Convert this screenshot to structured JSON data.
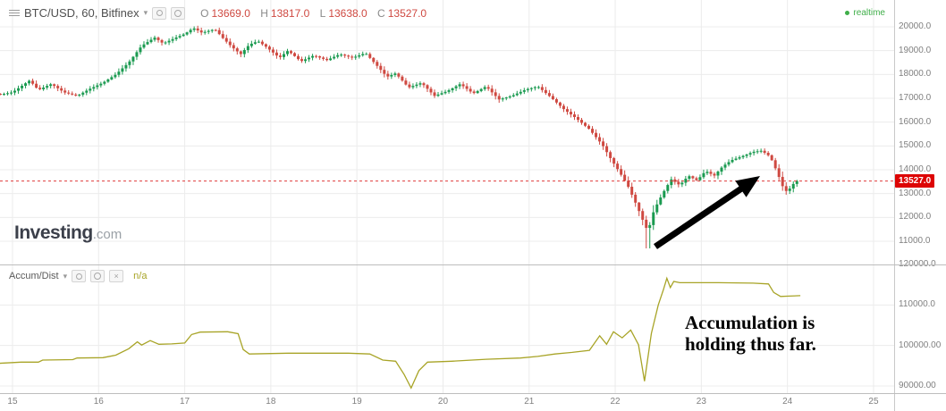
{
  "header": {
    "symbol_title": "BTC/USD, 60, Bitfinex",
    "ohlc_labels": {
      "o": "O",
      "h": "H",
      "l": "L",
      "c": "C"
    },
    "ohlc_values": {
      "o": "13669.0",
      "h": "13817.0",
      "l": "13638.0",
      "c": "13527.0"
    },
    "realtime_label": "realtime"
  },
  "logo": {
    "brand": "Investing",
    "suffix": ".com"
  },
  "indicator_header": {
    "label": "Accum/Dist",
    "value": "n/a"
  },
  "annotation_text": {
    "line1": "Accumulation is",
    "line2": "holding thus far."
  },
  "price_tag_label": "13527.0",
  "icons": {
    "caret": "▾",
    "close": "×"
  },
  "colors": {
    "candle_up": "#1a9a50",
    "candle_down": "#cf4941",
    "last_price_line": "#e03c3c",
    "price_tag_bg": "#dd0404",
    "price_tag_text": "#ffffff",
    "realtime": "#3fae49",
    "indicator_line": "#a8a427",
    "indicator_value": "#a8a427",
    "ohlc_value": "#cf4941",
    "axis_text": "#7f7f7f",
    "grid": "#ececec",
    "arrow": "#000000",
    "annotation_text": "#000000"
  },
  "arrow_annotation": {
    "from": [
      733,
      276
    ],
    "to": [
      850,
      197
    ]
  },
  "chart_data": [
    {
      "type": "candlestick",
      "title": "BTC/USD, 60, Bitfinex",
      "last_price": 13527.0,
      "ohlc": {
        "open": 13669.0,
        "high": 13817.0,
        "low": 13638.0,
        "close": 13527.0
      },
      "candles_per_day": 24,
      "range": [
        14.86,
        24.11
      ],
      "spike_low": {
        "t": 22.38,
        "price": 10700
      },
      "x_axis": {
        "ticks": [
          15,
          16,
          17,
          18,
          19,
          20,
          21,
          22,
          23,
          24,
          25
        ],
        "labels": [
          "15",
          "16",
          "17",
          "18",
          "19",
          "20",
          "21",
          "22",
          "23",
          "24",
          "25"
        ]
      },
      "y_axis": {
        "ticks": [
          {
            "value": 20000,
            "label": "20000.0"
          },
          {
            "value": 19000,
            "label": "19000.0"
          },
          {
            "value": 18000,
            "label": "18000.0"
          },
          {
            "value": 17000,
            "label": "17000.0"
          },
          {
            "value": 16000,
            "label": "16000.0"
          },
          {
            "value": 15000,
            "label": "15000.0"
          },
          {
            "value": 14000,
            "label": "14000.0"
          },
          {
            "value": 13000,
            "label": "13000.0"
          },
          {
            "value": 12000,
            "label": "12000.0"
          },
          {
            "value": 11000,
            "label": "11000.0"
          }
        ]
      },
      "price_path_anchors": [
        [
          14.85,
          17150
        ],
        [
          15.0,
          17250
        ],
        [
          15.1,
          17500
        ],
        [
          15.2,
          17750
        ],
        [
          15.3,
          17350
        ],
        [
          15.45,
          17600
        ],
        [
          15.6,
          17250
        ],
        [
          15.75,
          17100
        ],
        [
          15.9,
          17400
        ],
        [
          16.05,
          17650
        ],
        [
          16.2,
          18000
        ],
        [
          16.35,
          18500
        ],
        [
          16.5,
          19200
        ],
        [
          16.65,
          19550
        ],
        [
          16.75,
          19300
        ],
        [
          16.9,
          19550
        ],
        [
          17.0,
          19700
        ],
        [
          17.1,
          19950
        ],
        [
          17.2,
          19750
        ],
        [
          17.35,
          19900
        ],
        [
          17.45,
          19500
        ],
        [
          17.55,
          19150
        ],
        [
          17.65,
          18850
        ],
        [
          17.75,
          19250
        ],
        [
          17.85,
          19400
        ],
        [
          17.95,
          19150
        ],
        [
          18.1,
          18700
        ],
        [
          18.2,
          19000
        ],
        [
          18.35,
          18550
        ],
        [
          18.5,
          18800
        ],
        [
          18.65,
          18600
        ],
        [
          18.8,
          18850
        ],
        [
          18.95,
          18700
        ],
        [
          19.1,
          18900
        ],
        [
          19.2,
          18500
        ],
        [
          19.35,
          17900
        ],
        [
          19.45,
          18050
        ],
        [
          19.6,
          17450
        ],
        [
          19.75,
          17650
        ],
        [
          19.9,
          17100
        ],
        [
          20.05,
          17300
        ],
        [
          20.2,
          17600
        ],
        [
          20.35,
          17200
        ],
        [
          20.5,
          17500
        ],
        [
          20.65,
          16950
        ],
        [
          20.8,
          17100
        ],
        [
          20.95,
          17350
        ],
        [
          21.1,
          17500
        ],
        [
          21.25,
          17050
        ],
        [
          21.4,
          16550
        ],
        [
          21.55,
          16150
        ],
        [
          21.7,
          15700
        ],
        [
          21.85,
          15050
        ],
        [
          21.95,
          14450
        ],
        [
          22.05,
          13900
        ],
        [
          22.15,
          13300
        ],
        [
          22.25,
          12500
        ],
        [
          22.33,
          11800
        ],
        [
          22.38,
          11400
        ],
        [
          22.45,
          12300
        ],
        [
          22.55,
          13000
        ],
        [
          22.65,
          13600
        ],
        [
          22.75,
          13350
        ],
        [
          22.85,
          13750
        ],
        [
          22.95,
          13550
        ],
        [
          23.05,
          13950
        ],
        [
          23.15,
          13750
        ],
        [
          23.25,
          14150
        ],
        [
          23.35,
          14400
        ],
        [
          23.5,
          14600
        ],
        [
          23.6,
          14750
        ],
        [
          23.7,
          14800
        ],
        [
          23.8,
          14550
        ],
        [
          23.88,
          13900
        ],
        [
          23.95,
          13250
        ],
        [
          24.0,
          13050
        ],
        [
          24.05,
          13350
        ],
        [
          24.11,
          13527
        ]
      ]
    },
    {
      "type": "line",
      "name": "Accum/Dist",
      "value_display": "n/a",
      "y_axis": {
        "ticks": [
          {
            "value": 120000,
            "label": "120000.0"
          },
          {
            "value": 110000,
            "label": "110000.0"
          },
          {
            "value": 100000,
            "label": "100000.00"
          },
          {
            "value": 90000,
            "label": "90000.00"
          }
        ]
      },
      "points": [
        [
          14.85,
          95600
        ],
        [
          15.1,
          95900
        ],
        [
          15.3,
          95900
        ],
        [
          15.35,
          96400
        ],
        [
          15.7,
          96500
        ],
        [
          15.75,
          96900
        ],
        [
          16.05,
          97000
        ],
        [
          16.2,
          97600
        ],
        [
          16.35,
          99200
        ],
        [
          16.45,
          100900
        ],
        [
          16.5,
          100100
        ],
        [
          16.6,
          101200
        ],
        [
          16.7,
          100300
        ],
        [
          16.85,
          100400
        ],
        [
          17.0,
          100600
        ],
        [
          17.08,
          102700
        ],
        [
          17.18,
          103300
        ],
        [
          17.5,
          103400
        ],
        [
          17.62,
          102900
        ],
        [
          17.68,
          99000
        ],
        [
          17.75,
          97900
        ],
        [
          18.2,
          98100
        ],
        [
          18.9,
          98100
        ],
        [
          19.15,
          97900
        ],
        [
          19.3,
          96400
        ],
        [
          19.45,
          96100
        ],
        [
          19.55,
          92800
        ],
        [
          19.63,
          89500
        ],
        [
          19.72,
          93800
        ],
        [
          19.82,
          95900
        ],
        [
          20.1,
          96100
        ],
        [
          20.5,
          96600
        ],
        [
          20.9,
          96900
        ],
        [
          21.1,
          97300
        ],
        [
          21.3,
          97900
        ],
        [
          21.5,
          98300
        ],
        [
          21.7,
          98800
        ],
        [
          21.82,
          102400
        ],
        [
          21.9,
          100300
        ],
        [
          21.98,
          103400
        ],
        [
          22.08,
          101900
        ],
        [
          22.18,
          103800
        ],
        [
          22.27,
          100200
        ],
        [
          22.34,
          91200
        ],
        [
          22.42,
          103000
        ],
        [
          22.5,
          110000
        ],
        [
          22.56,
          113800
        ],
        [
          22.6,
          116600
        ],
        [
          22.64,
          114300
        ],
        [
          22.68,
          115800
        ],
        [
          22.75,
          115500
        ],
        [
          23.2,
          115500
        ],
        [
          23.6,
          115400
        ],
        [
          23.78,
          115200
        ],
        [
          23.84,
          113100
        ],
        [
          23.92,
          112100
        ],
        [
          24.02,
          112200
        ],
        [
          24.15,
          112300
        ]
      ]
    }
  ]
}
